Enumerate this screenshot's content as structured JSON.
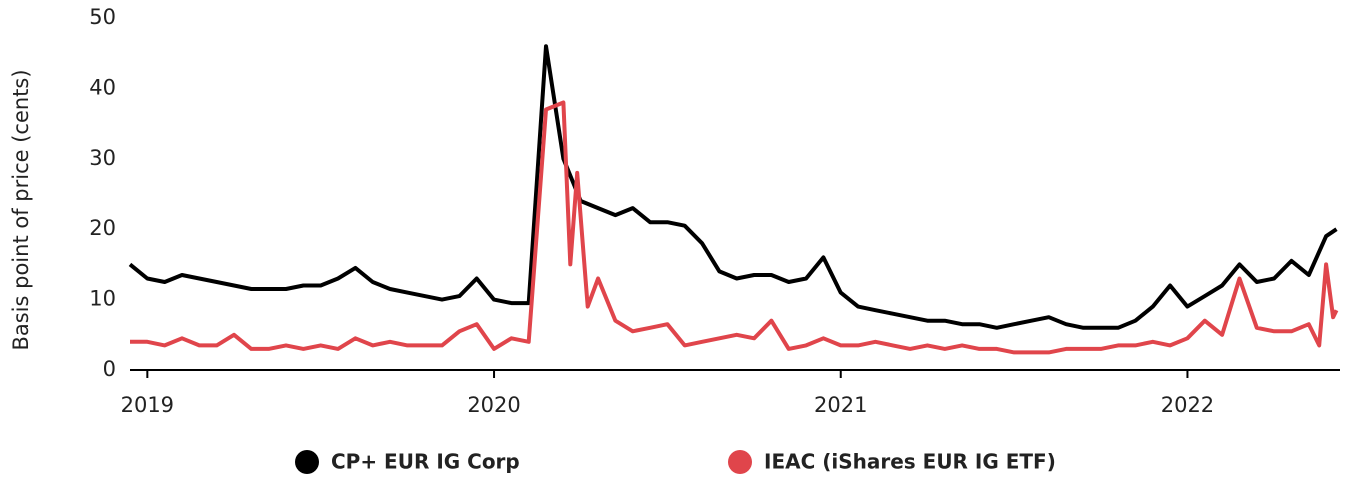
{
  "chart_data": {
    "type": "line",
    "y_label": "Basis point of price (cents)",
    "xlim": [
      2018.95,
      2022.44
    ],
    "xticks": [
      2019,
      2020,
      2021,
      2022
    ],
    "ylim": [
      0,
      50
    ],
    "yticks": [
      0,
      10,
      20,
      30,
      40,
      50
    ],
    "grid": false,
    "legend": "bottom",
    "series": [
      {
        "name": "CP+ EUR IG Corp",
        "color": "#000000",
        "x": [
          2018.95,
          2019.0,
          2019.05,
          2019.1,
          2019.15,
          2019.2,
          2019.25,
          2019.3,
          2019.35,
          2019.4,
          2019.45,
          2019.5,
          2019.55,
          2019.6,
          2019.65,
          2019.7,
          2019.75,
          2019.8,
          2019.85,
          2019.9,
          2019.95,
          2020.0,
          2020.05,
          2020.1,
          2020.15,
          2020.2,
          2020.25,
          2020.3,
          2020.35,
          2020.4,
          2020.45,
          2020.5,
          2020.55,
          2020.6,
          2020.65,
          2020.7,
          2020.75,
          2020.8,
          2020.85,
          2020.9,
          2020.95,
          2021.0,
          2021.05,
          2021.1,
          2021.15,
          2021.2,
          2021.25,
          2021.3,
          2021.35,
          2021.4,
          2021.45,
          2021.5,
          2021.55,
          2021.6,
          2021.65,
          2021.7,
          2021.75,
          2021.8,
          2021.85,
          2021.9,
          2021.95,
          2022.0,
          2022.05,
          2022.1,
          2022.15,
          2022.2,
          2022.25,
          2022.3,
          2022.35,
          2022.4,
          2022.43
        ],
        "values": [
          15,
          13,
          12.5,
          13.5,
          13,
          12.5,
          12,
          11.5,
          11.5,
          11.5,
          12,
          12,
          13,
          14.5,
          12.5,
          11.5,
          11,
          10.5,
          10,
          10.5,
          13,
          10,
          9.5,
          9.5,
          46,
          30,
          24,
          23,
          22,
          23,
          21,
          21,
          20.5,
          18,
          14,
          13,
          13.5,
          13.5,
          12.5,
          13,
          16,
          11,
          9,
          8.5,
          8,
          7.5,
          7,
          7,
          6.5,
          6.5,
          6,
          6.5,
          7,
          7.5,
          6.5,
          6,
          6,
          6,
          7,
          9,
          12,
          9,
          10.5,
          12,
          15,
          12.5,
          13,
          15.5,
          13.5,
          19,
          20
        ]
      },
      {
        "name": "IEAC (iShares EUR IG ETF)",
        "color": "#e0454b",
        "x": [
          2018.95,
          2019.0,
          2019.05,
          2019.1,
          2019.15,
          2019.2,
          2019.25,
          2019.3,
          2019.35,
          2019.4,
          2019.45,
          2019.5,
          2019.55,
          2019.6,
          2019.65,
          2019.7,
          2019.75,
          2019.8,
          2019.85,
          2019.9,
          2019.95,
          2020.0,
          2020.05,
          2020.1,
          2020.15,
          2020.2,
          2020.22,
          2020.24,
          2020.27,
          2020.3,
          2020.35,
          2020.4,
          2020.45,
          2020.5,
          2020.55,
          2020.6,
          2020.65,
          2020.7,
          2020.75,
          2020.8,
          2020.85,
          2020.9,
          2020.95,
          2021.0,
          2021.05,
          2021.1,
          2021.15,
          2021.2,
          2021.25,
          2021.3,
          2021.35,
          2021.4,
          2021.45,
          2021.5,
          2021.55,
          2021.6,
          2021.65,
          2021.7,
          2021.75,
          2021.8,
          2021.85,
          2021.9,
          2021.95,
          2022.0,
          2022.05,
          2022.1,
          2022.15,
          2022.2,
          2022.25,
          2022.3,
          2022.35,
          2022.38,
          2022.4,
          2022.42,
          2022.43
        ],
        "values": [
          4,
          4,
          3.5,
          4.5,
          3.5,
          3.5,
          5,
          3,
          3,
          3.5,
          3,
          3.5,
          3,
          4.5,
          3.5,
          4,
          3.5,
          3.5,
          3.5,
          5.5,
          6.5,
          3,
          4.5,
          4,
          37,
          38,
          15,
          28,
          9,
          13,
          7,
          5.5,
          6,
          6.5,
          3.5,
          4,
          4.5,
          5,
          4.5,
          7,
          3,
          3.5,
          4.5,
          3.5,
          3.5,
          4,
          3.5,
          3,
          3.5,
          3,
          3.5,
          3,
          3,
          2.5,
          2.5,
          2.5,
          3,
          3,
          3,
          3.5,
          3.5,
          4,
          3.5,
          4.5,
          7,
          5,
          13,
          6,
          5.5,
          5.5,
          6.5,
          3.5,
          15,
          7.5,
          8.5
        ]
      }
    ]
  }
}
